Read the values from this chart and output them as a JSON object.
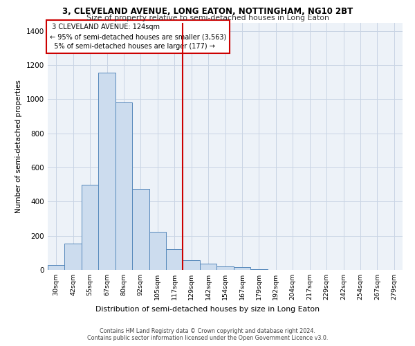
{
  "title1": "3, CLEVELAND AVENUE, LONG EATON, NOTTINGHAM, NG10 2BT",
  "title2": "Size of property relative to semi-detached houses in Long Eaton",
  "xlabel": "Distribution of semi-detached houses by size in Long Eaton",
  "ylabel": "Number of semi-detached properties",
  "bar_labels": [
    "30sqm",
    "42sqm",
    "55sqm",
    "67sqm",
    "80sqm",
    "92sqm",
    "105sqm",
    "117sqm",
    "129sqm",
    "142sqm",
    "154sqm",
    "167sqm",
    "179sqm",
    "192sqm",
    "204sqm",
    "217sqm",
    "229sqm",
    "242sqm",
    "254sqm",
    "267sqm",
    "279sqm"
  ],
  "bar_heights": [
    30,
    155,
    500,
    1155,
    980,
    475,
    225,
    120,
    55,
    35,
    20,
    15,
    5,
    0,
    0,
    0,
    0,
    0,
    0,
    0,
    0
  ],
  "bar_color": "#ccdcee",
  "bar_edge_color": "#5588bb",
  "property_size": 124,
  "property_label": "3 CLEVELAND AVENUE: 124sqm",
  "pct_smaller": 95,
  "n_smaller": 3563,
  "pct_larger": 5,
  "n_larger": 177,
  "vline_color": "#cc0000",
  "ylim": [
    0,
    1450
  ],
  "yticks": [
    0,
    200,
    400,
    600,
    800,
    1000,
    1200,
    1400
  ],
  "grid_color": "#c8d4e4",
  "background_color": "#edf2f8",
  "footnote1": "Contains HM Land Registry data © Crown copyright and database right 2024.",
  "footnote2": "Contains public sector information licensed under the Open Government Licence v3.0."
}
